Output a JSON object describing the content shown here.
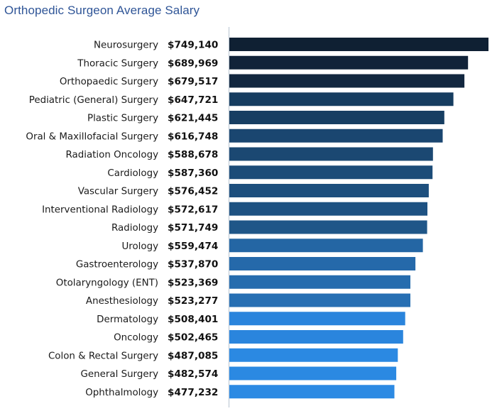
{
  "chart_data": {
    "type": "bar",
    "orientation": "horizontal",
    "title": "Orthopedic Surgeon Average Salary",
    "xlabel": "",
    "ylabel": "",
    "xlim": [
      0,
      749140
    ],
    "grid": false,
    "legend": "none",
    "categories": [
      "Neurosurgery",
      "Thoracic Surgery",
      "Orthopaedic Surgery",
      "Pediatric (General) Surgery",
      "Plastic Surgery",
      "Oral & Maxillofacial Surgery",
      "Radiation Oncology",
      "Cardiology",
      "Vascular Surgery",
      "Interventional Radiology",
      "Radiology",
      "Urology",
      "Gastroenterology",
      "Otolaryngology (ENT)",
      "Anesthesiology",
      "Dermatology",
      "Oncology",
      "Colon & Rectal Surgery",
      "General Surgery",
      "Ophthalmology"
    ],
    "values": [
      749140,
      689969,
      679517,
      647721,
      621445,
      616748,
      588678,
      587360,
      576452,
      572617,
      571749,
      559474,
      537870,
      523369,
      523277,
      508401,
      502465,
      487085,
      482574,
      477232
    ],
    "value_labels": [
      "$749,140",
      "$689,969",
      "$679,517",
      "$647,721",
      "$621,445",
      "$616,748",
      "$588,678",
      "$587,360",
      "$576,452",
      "$572,617",
      "$571,749",
      "$559,474",
      "$537,870",
      "$523,369",
      "$523,277",
      "$508,401",
      "$502,465",
      "$487,085",
      "$482,574",
      "$477,232"
    ],
    "colors": [
      "#0f2033",
      "#112339",
      "#12273f",
      "#163d60",
      "#173e62",
      "#1a4670",
      "#1b4872",
      "#1c4c78",
      "#1d4f7d",
      "#1e5282",
      "#1f5688",
      "#2466a4",
      "#2569aa",
      "#266cae",
      "#276fb3",
      "#2a84dc",
      "#2a85dd",
      "#2b89e2",
      "#2b89e2",
      "#2c8ae3"
    ]
  }
}
